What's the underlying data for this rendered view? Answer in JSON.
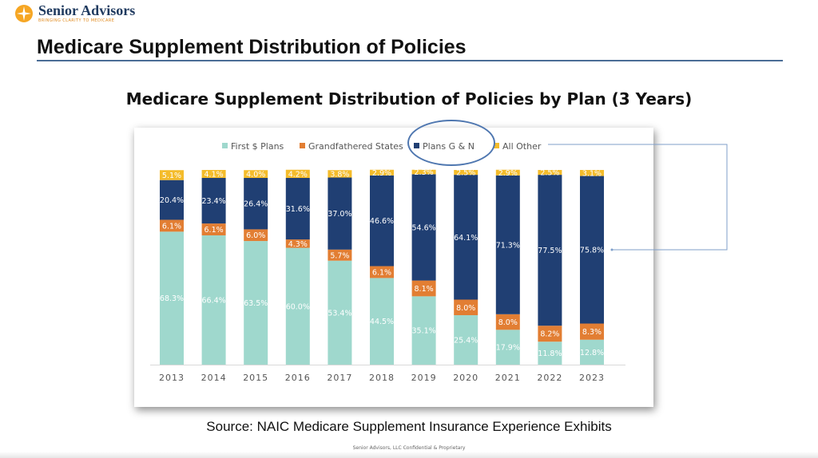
{
  "header": {
    "brand_name": "Senior Advisors",
    "brand_tagline": "BRINGING CLARITY TO MEDICARE",
    "slide_title": "Medicare Supplement Distribution of Policies"
  },
  "colors": {
    "first": "#9fd8cd",
    "grandfathered": "#e27e33",
    "plans_gn": "#203f73",
    "all_other": "#f4bc2b",
    "highlight": "#4f77b0"
  },
  "icons": {
    "logo": "sun-icon"
  },
  "chart_data": {
    "type": "bar",
    "stacked": true,
    "normalized": true,
    "title": "Medicare Supplement Distribution of Policies by Plan (3 Years)",
    "categories": [
      "2013",
      "2014",
      "2015",
      "2016",
      "2017",
      "2018",
      "2019",
      "2020",
      "2021",
      "2022",
      "2023"
    ],
    "ylim": [
      0,
      100
    ],
    "legend_position": "top",
    "series": [
      {
        "name": "First $ Plans",
        "values": [
          68.3,
          66.4,
          63.5,
          60.0,
          53.4,
          44.5,
          35.1,
          25.4,
          17.9,
          11.8,
          12.8
        ],
        "labels": [
          "68.3%",
          "66.4%",
          "63.5%",
          "60.0%",
          "53.4%",
          "44.5%",
          "35.1%",
          "25.4%",
          "17.9%",
          "11.8%",
          "12.8%"
        ]
      },
      {
        "name": "Grandfathered States",
        "values": [
          6.1,
          6.1,
          6.0,
          4.3,
          5.7,
          6.1,
          8.1,
          8.0,
          8.0,
          8.2,
          8.3
        ],
        "labels": [
          "6.1%",
          "6.1%",
          "6.0%",
          "4.3%",
          "5.7%",
          "6.1%",
          "8.1%",
          "8.0%",
          "8.0%",
          "8.2%",
          "8.3%"
        ]
      },
      {
        "name": "Plans G & N",
        "values": [
          20.4,
          23.4,
          26.4,
          31.6,
          37.0,
          46.6,
          54.6,
          64.1,
          71.3,
          77.5,
          75.8
        ],
        "labels": [
          "20.4%",
          "23.4%",
          "26.4%",
          "31.6%",
          "37.0%",
          "46.6%",
          "54.6%",
          "64.1%",
          "71.3%",
          "77.5%",
          "75.8%"
        ]
      },
      {
        "name": "All Other",
        "values": [
          5.1,
          4.1,
          4.0,
          4.2,
          3.8,
          2.9,
          2.3,
          2.5,
          2.9,
          2.5,
          3.1
        ],
        "labels": [
          "5.1%",
          "4.1%",
          "4.0%",
          "4.2%",
          "3.8%",
          "2.9%",
          "2.3%",
          "2.5%",
          "2.9%",
          "2.5%",
          "3.1%"
        ]
      }
    ]
  },
  "source_text": "Source: NAIC Medicare Supplement Insurance Experience Exhibits",
  "footer_text": "Senior Advisors, LLC Confidential & Proprietary"
}
